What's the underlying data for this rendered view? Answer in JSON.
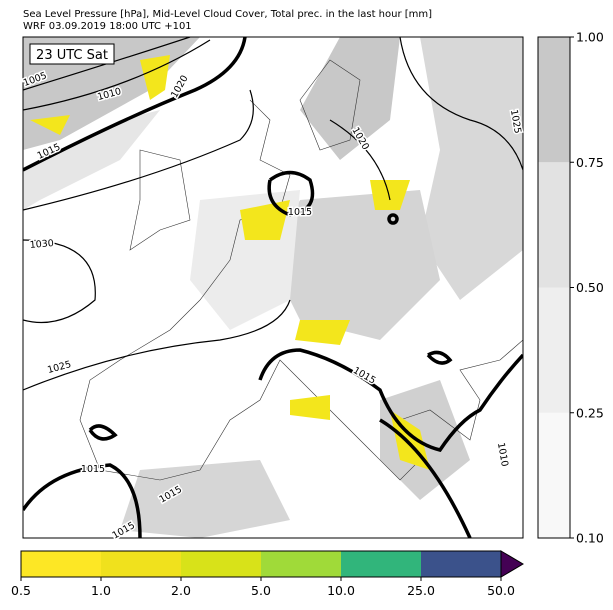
{
  "header": {
    "lines": [
      "Sea Level Pressure [hPa], Mid-Level Cloud Cover, Total prec. in the last hour [mm]",
      "WRF 03.09.2019 18:00 UTC +101"
    ]
  },
  "map": {
    "time_label": "23 UTC Sat",
    "contour_labels": [
      "1005",
      "1010",
      "1020",
      "1015",
      "1030",
      "1025",
      "1015",
      "1015",
      "1015",
      "1020",
      "1025",
      "1015",
      "1010",
      "1015"
    ]
  },
  "cloud_colorbar": {
    "colors": [
      "#f8f8f8",
      "#eeeeee",
      "#e2e2e2",
      "#c8c8c8"
    ],
    "ticks": [
      {
        "value": 0.1,
        "label": "0.10"
      },
      {
        "value": 0.25,
        "label": "0.25"
      },
      {
        "value": 0.5,
        "label": "0.50"
      },
      {
        "value": 0.75,
        "label": "0.75"
      },
      {
        "value": 1,
        "label": "1.00"
      }
    ]
  },
  "precip_colorbar": {
    "colors": [
      "#fde725",
      "#f0e11d",
      "#d8e219",
      "#a0da39",
      "#31b57b",
      "#3b528b"
    ],
    "extend_color": "#440154",
    "ticks": [
      0.5,
      {
        "value": 1,
        "label": "1.0"
      },
      {
        "value": 2,
        "label": "2.0"
      },
      {
        "value": 5,
        "label": "5.0"
      },
      {
        "value": 10,
        "label": "10.0"
      },
      {
        "value": 25,
        "label": "25.0"
      },
      {
        "value": 50,
        "label": "50.0"
      }
    ]
  }
}
